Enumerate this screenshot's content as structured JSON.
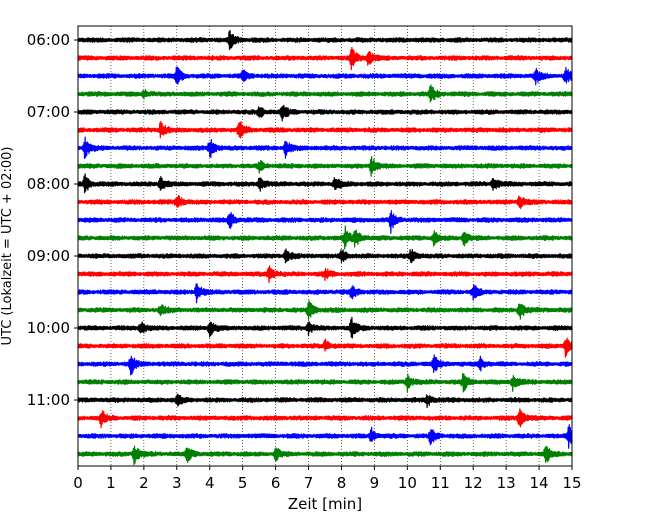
{
  "chart_data": {
    "type": "line",
    "subtype": "helicorder",
    "title": "",
    "xlabel": "Zeit  [min]",
    "ylabel": "UTC (Lokalzeit = UTC + 02:00)",
    "xlim": [
      0,
      15
    ],
    "x_ticks": [
      "0",
      "1",
      "2",
      "3",
      "4",
      "5",
      "6",
      "7",
      "8",
      "9",
      "10",
      "11",
      "12",
      "13",
      "14",
      "15"
    ],
    "y_tick_labels": [
      "06:00",
      "07:00",
      "08:00",
      "09:00",
      "10:00",
      "11:00"
    ],
    "grid": "vertical dotted",
    "line_minutes": 15,
    "start_time": "06:00",
    "colors": [
      "#000000",
      "#ff0000",
      "#0000ff",
      "#008000"
    ],
    "traces": [
      {
        "time": "06:00",
        "events": [
          [
            4.6,
            1.0
          ]
        ]
      },
      {
        "time": "06:15",
        "events": [
          [
            8.3,
            1.0
          ],
          [
            8.8,
            0.8
          ]
        ]
      },
      {
        "time": "06:30",
        "events": [
          [
            3.0,
            1.0
          ],
          [
            5.0,
            0.5
          ],
          [
            13.9,
            0.7
          ],
          [
            14.8,
            0.8
          ]
        ]
      },
      {
        "time": "06:45",
        "events": [
          [
            10.7,
            0.9
          ],
          [
            2.0,
            0.4
          ]
        ]
      },
      {
        "time": "07:00",
        "events": [
          [
            6.2,
            0.8
          ],
          [
            5.5,
            0.5
          ]
        ]
      },
      {
        "time": "07:15",
        "events": [
          [
            4.9,
            1.0
          ],
          [
            2.5,
            0.8
          ]
        ]
      },
      {
        "time": "07:30",
        "events": [
          [
            0.2,
            1.0
          ],
          [
            4.0,
            1.0
          ],
          [
            6.3,
            0.8
          ]
        ]
      },
      {
        "time": "07:45",
        "events": [
          [
            8.9,
            0.9
          ],
          [
            5.5,
            0.5
          ]
        ]
      },
      {
        "time": "08:00",
        "events": [
          [
            0.2,
            0.9
          ],
          [
            2.5,
            0.7
          ],
          [
            5.5,
            0.7
          ],
          [
            7.8,
            0.7
          ],
          [
            12.6,
            0.7
          ]
        ]
      },
      {
        "time": "08:15",
        "events": [
          [
            3.0,
            0.8
          ],
          [
            13.4,
            0.6
          ]
        ]
      },
      {
        "time": "08:30",
        "events": [
          [
            4.6,
            0.8
          ],
          [
            9.5,
            1.0
          ]
        ]
      },
      {
        "time": "08:45",
        "events": [
          [
            8.1,
            1.0
          ],
          [
            8.4,
            0.9
          ],
          [
            11.7,
            0.8
          ],
          [
            10.8,
            0.6
          ]
        ]
      },
      {
        "time": "09:00",
        "events": [
          [
            6.3,
            0.8
          ],
          [
            8.0,
            0.6
          ],
          [
            10.1,
            0.7
          ]
        ]
      },
      {
        "time": "09:15",
        "events": [
          [
            5.8,
            0.8
          ],
          [
            7.5,
            0.5
          ]
        ]
      },
      {
        "time": "09:30",
        "events": [
          [
            3.6,
            1.0
          ],
          [
            8.3,
            0.7
          ],
          [
            12.0,
            0.7
          ]
        ]
      },
      {
        "time": "09:45",
        "events": [
          [
            7.0,
            0.8
          ],
          [
            13.4,
            1.0
          ],
          [
            2.5,
            0.6
          ]
        ]
      },
      {
        "time": "10:00",
        "events": [
          [
            4.0,
            1.0
          ],
          [
            8.3,
            1.0
          ],
          [
            1.9,
            0.7
          ],
          [
            7.0,
            0.6
          ]
        ]
      },
      {
        "time": "10:15",
        "events": [
          [
            14.8,
            1.0
          ],
          [
            7.5,
            0.5
          ]
        ]
      },
      {
        "time": "10:30",
        "events": [
          [
            1.6,
            1.0
          ],
          [
            10.8,
            0.8
          ],
          [
            12.2,
            0.6
          ]
        ]
      },
      {
        "time": "10:45",
        "events": [
          [
            11.7,
            0.9
          ],
          [
            13.2,
            0.7
          ],
          [
            10.0,
            0.7
          ]
        ]
      },
      {
        "time": "11:00",
        "events": [
          [
            10.6,
            0.6
          ],
          [
            3.0,
            0.5
          ]
        ]
      },
      {
        "time": "11:15",
        "events": [
          [
            13.4,
            1.0
          ],
          [
            0.7,
            0.8
          ]
        ]
      },
      {
        "time": "11:30",
        "events": [
          [
            10.7,
            0.9
          ],
          [
            14.9,
            1.0
          ],
          [
            8.9,
            0.7
          ]
        ]
      },
      {
        "time": "11:45",
        "events": [
          [
            1.7,
            0.9
          ],
          [
            3.3,
            0.8
          ],
          [
            6.0,
            0.7
          ],
          [
            14.2,
            1.0
          ]
        ]
      }
    ]
  }
}
